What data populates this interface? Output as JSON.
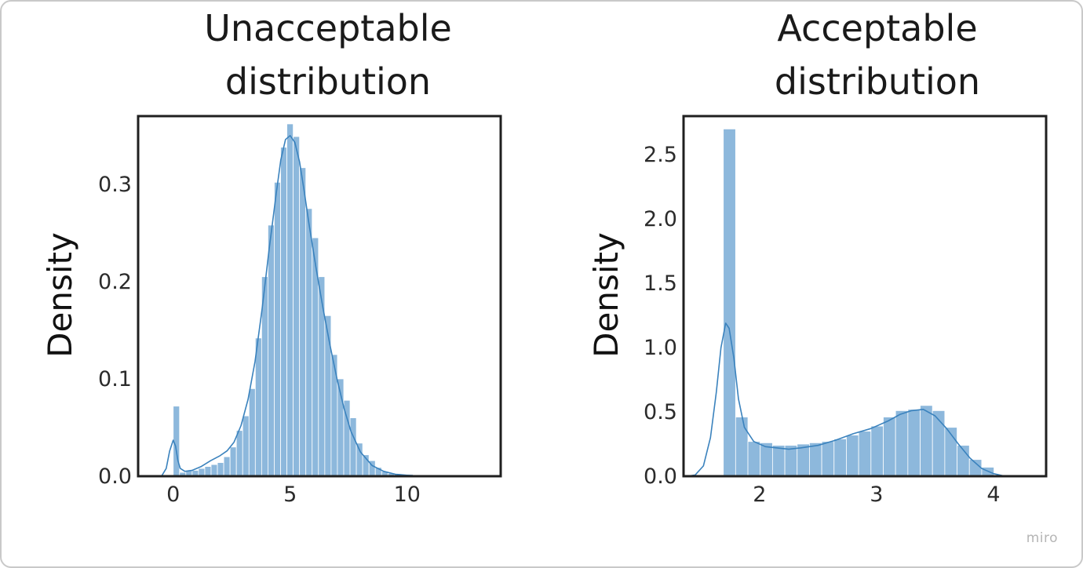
{
  "chart_data": [
    {
      "type": "bar",
      "title": "Unacceptable\ndistribution",
      "xlabel": "",
      "ylabel": "Density",
      "xlim": [
        -1.5,
        14
      ],
      "ylim": [
        0,
        0.37
      ],
      "xticks": [
        0,
        5,
        10
      ],
      "xtick_labels": [
        "0",
        "5",
        "10"
      ],
      "yticks": [
        0.0,
        0.1,
        0.2,
        0.3
      ],
      "ytick_labels": [
        "0.0",
        "0.1",
        "0.2",
        "0.3"
      ],
      "bar_color": "#8db8dc",
      "line_color": "#3a82bd",
      "histogram": {
        "bin_width": 0.27,
        "bin_starts": [
          0,
          0.27,
          0.54,
          0.81,
          1.08,
          1.35,
          1.62,
          1.89,
          2.16,
          2.43,
          2.7,
          2.97,
          3.24,
          3.51,
          3.78,
          4.05,
          4.32,
          4.59,
          4.86,
          5.13,
          5.4,
          5.67,
          5.94,
          6.21,
          6.48,
          6.75,
          7.02,
          7.29,
          7.56,
          7.83,
          8.1,
          8.37,
          8.64,
          8.91,
          9.18,
          9.45,
          9.72,
          9.99,
          10.26
        ],
        "densities": [
          0.072,
          0.004,
          0.006,
          0.006,
          0.008,
          0.01,
          0.012,
          0.014,
          0.02,
          0.03,
          0.047,
          0.062,
          0.09,
          0.142,
          0.205,
          0.258,
          0.302,
          0.338,
          0.362,
          0.349,
          0.317,
          0.275,
          0.245,
          0.205,
          0.165,
          0.125,
          0.1,
          0.078,
          0.06,
          0.034,
          0.022,
          0.016,
          0.009,
          0.005,
          0.003,
          0.002,
          0.001,
          0.002,
          0.001
        ]
      },
      "kde": {
        "x": [
          -0.5,
          -0.3,
          -0.15,
          0.0,
          0.1,
          0.2,
          0.3,
          0.5,
          0.8,
          1.2,
          1.6,
          2.0,
          2.3,
          2.6,
          2.9,
          3.2,
          3.5,
          3.8,
          4.1,
          4.4,
          4.6,
          4.8,
          5.0,
          5.2,
          5.4,
          5.6,
          5.8,
          6.1,
          6.4,
          6.7,
          7.0,
          7.3,
          7.6,
          8.0,
          8.5,
          9.0,
          9.5,
          10.0,
          10.5
        ],
        "y": [
          0.0,
          0.008,
          0.026,
          0.037,
          0.031,
          0.016,
          0.008,
          0.005,
          0.006,
          0.01,
          0.016,
          0.021,
          0.026,
          0.035,
          0.052,
          0.079,
          0.118,
          0.172,
          0.233,
          0.29,
          0.325,
          0.346,
          0.35,
          0.343,
          0.323,
          0.293,
          0.26,
          0.215,
          0.173,
          0.135,
          0.1,
          0.07,
          0.046,
          0.025,
          0.011,
          0.005,
          0.002,
          0.001,
          0.0
        ]
      }
    },
    {
      "type": "bar",
      "title": "Acceptable\ndistribution",
      "xlabel": "",
      "ylabel": "Density",
      "xlim": [
        1.35,
        4.45
      ],
      "ylim": [
        0,
        2.8
      ],
      "xticks": [
        2,
        3,
        4
      ],
      "xtick_labels": [
        "2",
        "3",
        "4"
      ],
      "yticks": [
        0.0,
        0.5,
        1.0,
        1.5,
        2.0,
        2.5
      ],
      "ytick_labels": [
        "0.0",
        "0.5",
        "1.0",
        "1.5",
        "2.0",
        "2.5"
      ],
      "bar_color": "#8db8dc",
      "line_color": "#3a82bd",
      "histogram": {
        "bin_width": 0.1052,
        "bin_starts": [
          1.69,
          1.7952,
          1.9004,
          2.0056,
          2.1108,
          2.216,
          2.3212,
          2.4264,
          2.5316,
          2.6368,
          2.742,
          2.8472,
          2.9524,
          3.0576,
          3.1628,
          3.268,
          3.3732,
          3.4784,
          3.5836,
          3.6888,
          3.794,
          3.8992
        ],
        "densities": [
          2.7,
          0.46,
          0.27,
          0.26,
          0.24,
          0.24,
          0.25,
          0.26,
          0.27,
          0.29,
          0.32,
          0.35,
          0.39,
          0.46,
          0.51,
          0.52,
          0.55,
          0.51,
          0.38,
          0.24,
          0.13,
          0.07
        ]
      },
      "kde": {
        "x": [
          1.38,
          1.45,
          1.52,
          1.58,
          1.63,
          1.67,
          1.71,
          1.74,
          1.78,
          1.82,
          1.87,
          1.95,
          2.05,
          2.15,
          2.25,
          2.35,
          2.5,
          2.65,
          2.8,
          2.95,
          3.1,
          3.2,
          3.3,
          3.4,
          3.5,
          3.6,
          3.7,
          3.8,
          3.9,
          4.0,
          4.1
        ],
        "y": [
          0.0,
          0.01,
          0.08,
          0.3,
          0.65,
          1.0,
          1.19,
          1.15,
          0.92,
          0.6,
          0.38,
          0.27,
          0.23,
          0.22,
          0.21,
          0.22,
          0.24,
          0.28,
          0.33,
          0.37,
          0.43,
          0.48,
          0.51,
          0.52,
          0.47,
          0.37,
          0.25,
          0.14,
          0.06,
          0.02,
          0.0
        ]
      }
    }
  ],
  "watermark": "miro"
}
